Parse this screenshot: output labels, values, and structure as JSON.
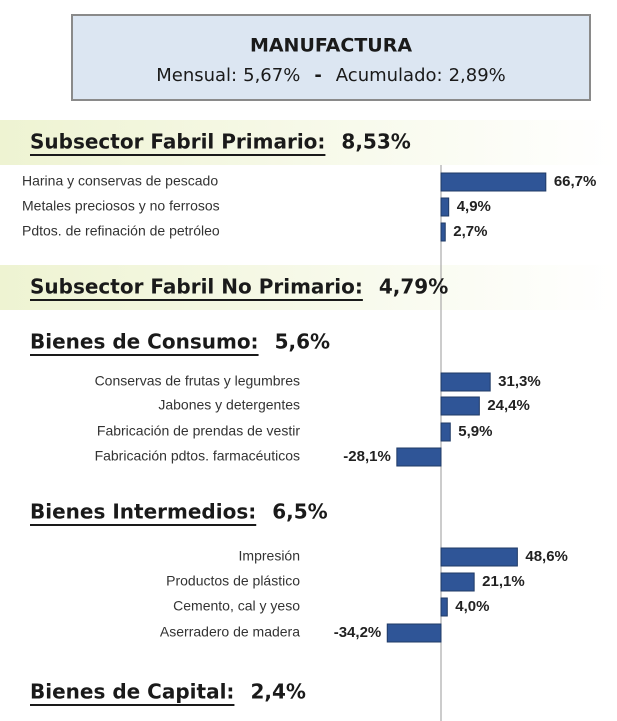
{
  "header": {
    "title": "MANUFACTURA",
    "monthly_label": "Mensual:",
    "monthly": "5,67%",
    "separator": "-",
    "cumulative_label": "Acumulado:",
    "cumulative": "2,89%"
  },
  "chart_data": [
    {
      "type": "bar",
      "orientation": "horizontal",
      "title": "Subsector Fabril Primario:",
      "title_value": "8,53%",
      "categories": [
        "Harina y conservas de pescado",
        "Metales preciosos y no ferrosos",
        "Pdtos. de refinación de petróleo"
      ],
      "values": [
        66.7,
        4.9,
        2.7
      ],
      "value_labels": [
        "66,7%",
        "4,9%",
        "2,7%"
      ],
      "color": "#2f5597",
      "xlim": [
        -35,
        70
      ]
    },
    {
      "type": "bar",
      "orientation": "horizontal",
      "title": "Bienes de Consumo:",
      "title_value": "5,6%",
      "categories": [
        "Conservas de frutas y legumbres",
        "Jabones y detergentes",
        "Fabricación de prendas de vestir",
        "Fabricación pdtos. farmacéuticos"
      ],
      "values": [
        31.3,
        24.4,
        5.9,
        -28.1
      ],
      "value_labels": [
        "31,3%",
        "24,4%",
        "5,9%",
        "-28,1%"
      ],
      "color": "#2f5597",
      "xlim": [
        -35,
        70
      ]
    },
    {
      "type": "bar",
      "orientation": "horizontal",
      "title": "Bienes Intermedios:",
      "title_value": "6,5%",
      "categories": [
        "Impresión",
        "Productos de plástico",
        "Cemento, cal y yeso",
        "Aserradero de madera"
      ],
      "values": [
        48.6,
        21.1,
        4.0,
        -34.2
      ],
      "value_labels": [
        "48,6%",
        "21,1%",
        "4,0%",
        "-34,2%"
      ],
      "color": "#2f5597",
      "xlim": [
        -35,
        70
      ]
    }
  ],
  "headings": [
    {
      "title": "Subsector Fabril No Primario:",
      "value": "4,79%"
    },
    {
      "title": "Bienes de Capital:",
      "value": "2,4%"
    }
  ]
}
